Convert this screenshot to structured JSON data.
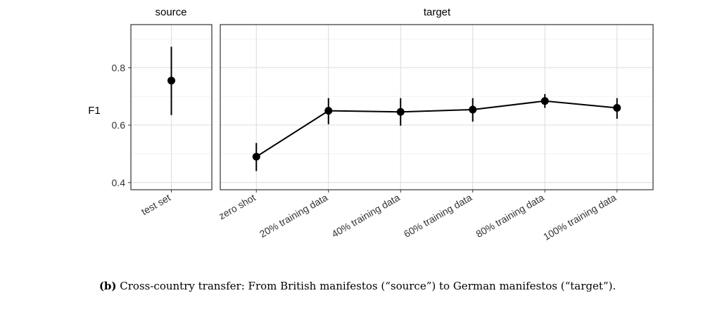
{
  "chart_data": [
    {
      "type": "scatter",
      "panel_title": "source",
      "ylabel": "F1",
      "ylim": [
        0.375,
        0.95
      ],
      "yticks": [
        0.4,
        0.6,
        0.8
      ],
      "grid": true,
      "categories": [
        "test set"
      ],
      "series": [
        {
          "values": [
            0.755
          ],
          "error_low": [
            0.635
          ],
          "error_high": [
            0.873
          ]
        }
      ]
    },
    {
      "type": "line",
      "panel_title": "target",
      "ylabel": "F1",
      "ylim": [
        0.375,
        0.95
      ],
      "yticks": [
        0.4,
        0.6,
        0.8
      ],
      "grid": true,
      "categories": [
        "zero shot",
        "20% training data",
        "40% training data",
        "60% training data",
        "80% training data",
        "100% training data"
      ],
      "series": [
        {
          "values": [
            0.49,
            0.65,
            0.646,
            0.654,
            0.684,
            0.66
          ],
          "error_low": [
            0.44,
            0.603,
            0.598,
            0.612,
            0.66,
            0.622
          ],
          "error_high": [
            0.538,
            0.694,
            0.694,
            0.694,
            0.708,
            0.694
          ]
        }
      ]
    }
  ],
  "caption": {
    "label": "(b)",
    "text": "Cross-country transfer: From British manifestos (“source”) to German manifestos (“target”)."
  }
}
